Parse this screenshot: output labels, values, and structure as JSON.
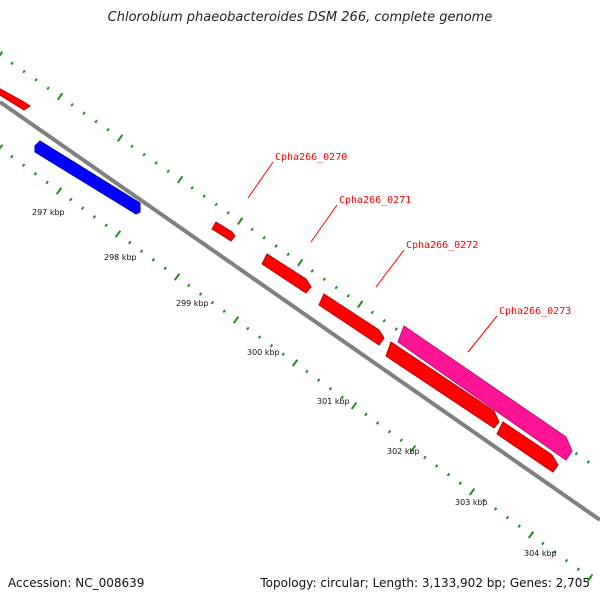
{
  "title": "Chlorobium phaeobacteroides DSM 266, complete genome",
  "footer": {
    "accession": "Accession: NC_008639",
    "summary": "Topology: circular; Length: 3,133,902 bp; Genes: 2,705"
  },
  "colors": {
    "backbone": "#808080",
    "forward_gene": "#ff0000",
    "reverse_gene": "#0000ff",
    "highlight_gene": "#ff1493",
    "tick": "#228b22",
    "label_line": "#ff0000"
  },
  "ticks": [
    {
      "label": "297 kbp"
    },
    {
      "label": "298 kbp"
    },
    {
      "label": "299 kbp"
    },
    {
      "label": "300 kbp"
    },
    {
      "label": "301 kbp"
    },
    {
      "label": "302 kbp"
    },
    {
      "label": "303 kbp"
    },
    {
      "label": "304 kbp"
    }
  ],
  "gene_labels": [
    {
      "label": "Cpha266_0270"
    },
    {
      "label": "Cpha266_0271"
    },
    {
      "label": "Cpha266_0272"
    },
    {
      "label": "Cpha266_0273"
    }
  ]
}
